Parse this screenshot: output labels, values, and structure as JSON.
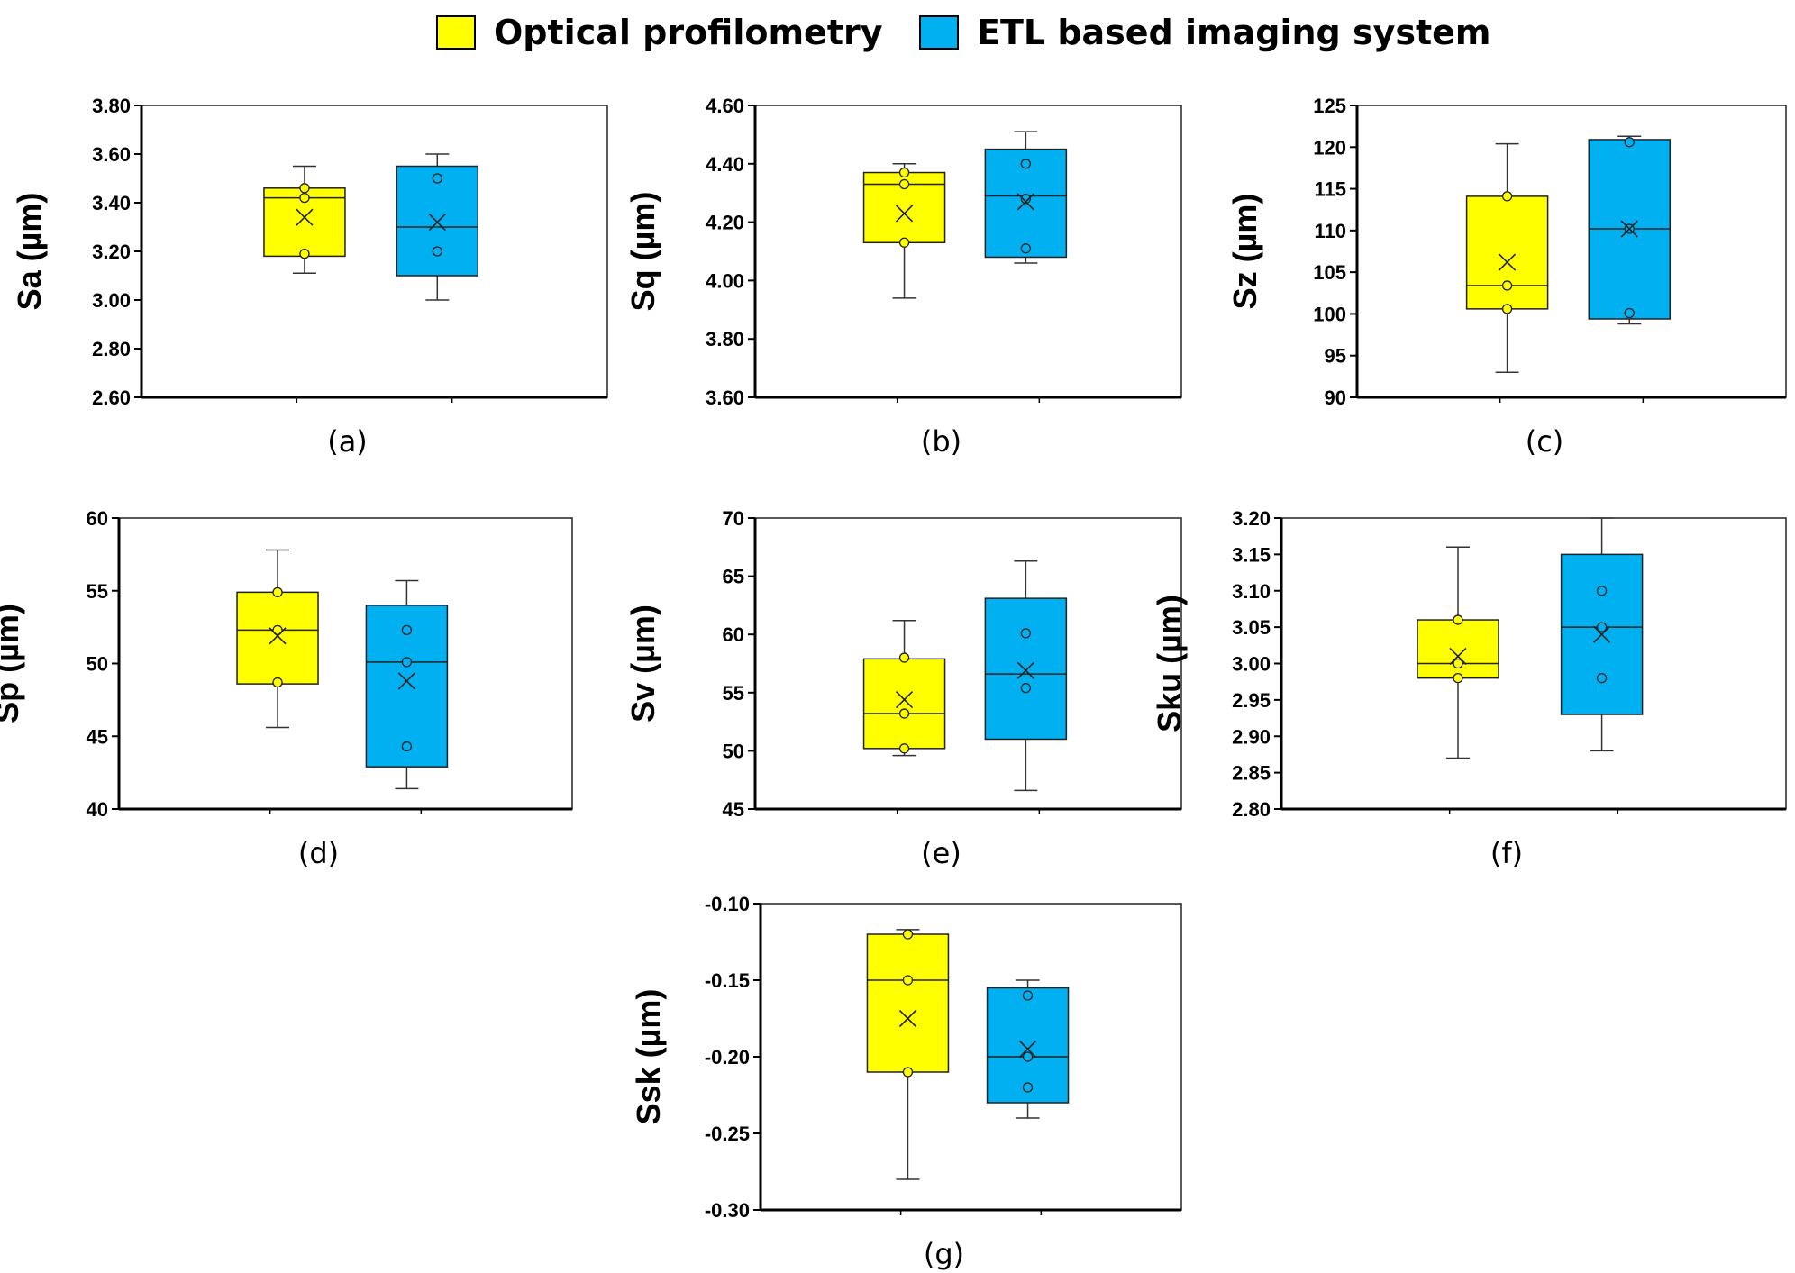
{
  "legend": {
    "items": [
      {
        "label": "Optical profilometry",
        "color": "#FFFF00"
      },
      {
        "label": "ETL based imaging system",
        "color": "#00B0F0"
      }
    ]
  },
  "chart_data": [
    {
      "type": "box",
      "panel": "(a)",
      "ylabel": "Sa (µm)",
      "ylim": [
        2.6,
        3.8
      ],
      "yticks": [
        2.6,
        2.8,
        3.0,
        3.2,
        3.4,
        3.6,
        3.8
      ],
      "decimals": 2,
      "series": [
        {
          "name": "Optical profilometry",
          "min": 3.11,
          "q1": 3.18,
          "median": 3.42,
          "q3": 3.46,
          "max": 3.55,
          "mean": 3.34,
          "points": [
            3.19,
            3.42,
            3.46
          ]
        },
        {
          "name": "ETL based imaging system",
          "min": 3.0,
          "q1": 3.1,
          "median": 3.3,
          "q3": 3.55,
          "max": 3.6,
          "mean": 3.32,
          "points": [
            3.2,
            3.5
          ]
        }
      ]
    },
    {
      "type": "box",
      "panel": "(b)",
      "ylabel": "Sq (µm)",
      "ylim": [
        3.6,
        4.6
      ],
      "yticks": [
        3.6,
        3.8,
        4.0,
        4.2,
        4.4,
        4.6
      ],
      "decimals": 2,
      "series": [
        {
          "name": "Optical profilometry",
          "min": 3.94,
          "q1": 4.13,
          "median": 4.33,
          "q3": 4.37,
          "max": 4.4,
          "mean": 4.23,
          "points": [
            4.13,
            4.33,
            4.37
          ]
        },
        {
          "name": "ETL based imaging system",
          "min": 4.06,
          "q1": 4.08,
          "median": 4.29,
          "q3": 4.45,
          "max": 4.51,
          "mean": 4.27,
          "points": [
            4.11,
            4.28,
            4.4
          ]
        }
      ]
    },
    {
      "type": "box",
      "panel": "(c)",
      "ylabel": "Sz (µm)",
      "ylim": [
        90,
        125
      ],
      "yticks": [
        90,
        95,
        100,
        105,
        110,
        115,
        120,
        125
      ],
      "decimals": 0,
      "series": [
        {
          "name": "Optical profilometry",
          "min": 93,
          "q1": 100.6,
          "median": 103.4,
          "q3": 114.1,
          "max": 120.4,
          "mean": 106.2,
          "points": [
            100.6,
            103.4,
            114.1
          ]
        },
        {
          "name": "ETL based imaging system",
          "min": 98.8,
          "q1": 99.4,
          "median": 110.2,
          "q3": 120.9,
          "max": 121.3,
          "mean": 110.2,
          "points": [
            100.1,
            110.2,
            120.6
          ]
        }
      ]
    },
    {
      "type": "box",
      "panel": "(d)",
      "ylabel": "Sp (µm)",
      "ylim": [
        40,
        60
      ],
      "yticks": [
        40,
        45,
        50,
        55,
        60
      ],
      "decimals": 0,
      "series": [
        {
          "name": "Optical profilometry",
          "min": 45.6,
          "q1": 48.6,
          "median": 52.3,
          "q3": 54.9,
          "max": 57.8,
          "mean": 51.9,
          "points": [
            48.7,
            52.3,
            54.9
          ]
        },
        {
          "name": "ETL based imaging system",
          "min": 41.4,
          "q1": 42.9,
          "median": 50.1,
          "q3": 54.0,
          "max": 55.7,
          "mean": 48.8,
          "points": [
            44.3,
            50.1,
            52.3
          ]
        }
      ]
    },
    {
      "type": "box",
      "panel": "(e)",
      "ylabel": "Sv (µm)",
      "ylim": [
        45,
        70
      ],
      "yticks": [
        45,
        50,
        55,
        60,
        65,
        70
      ],
      "decimals": 0,
      "series": [
        {
          "name": "Optical profilometry",
          "min": 49.6,
          "q1": 50.2,
          "median": 53.2,
          "q3": 57.9,
          "max": 61.2,
          "mean": 54.4,
          "points": [
            50.2,
            53.2,
            58.0
          ]
        },
        {
          "name": "ETL based imaging system",
          "min": 46.6,
          "q1": 51.0,
          "median": 56.6,
          "q3": 63.1,
          "max": 66.3,
          "mean": 56.9,
          "points": [
            55.4,
            60.1
          ]
        }
      ]
    },
    {
      "type": "box",
      "panel": "(f)",
      "ylabel": "Sku (µm)",
      "ylim": [
        2.8,
        3.2
      ],
      "yticks": [
        2.8,
        2.85,
        2.9,
        2.95,
        3.0,
        3.05,
        3.1,
        3.15,
        3.2
      ],
      "decimals": 2,
      "series": [
        {
          "name": "Optical profilometry",
          "min": 2.87,
          "q1": 2.98,
          "median": 3.0,
          "q3": 3.06,
          "max": 3.16,
          "mean": 3.01,
          "points": [
            2.98,
            3.0,
            3.06
          ]
        },
        {
          "name": "ETL based imaging system",
          "min": 2.88,
          "q1": 2.93,
          "median": 3.05,
          "q3": 3.15,
          "max": 3.2,
          "mean": 3.04,
          "points": [
            2.98,
            3.05,
            3.1
          ]
        }
      ]
    },
    {
      "type": "box",
      "panel": "(g)",
      "ylabel": "Ssk (µm)",
      "ylim": [
        -0.3,
        -0.1
      ],
      "yticks": [
        -0.3,
        -0.25,
        -0.2,
        -0.15,
        -0.1
      ],
      "decimals": 2,
      "series": [
        {
          "name": "Optical profilometry",
          "min": -0.28,
          "q1": -0.21,
          "median": -0.15,
          "q3": -0.12,
          "max": -0.117,
          "mean": -0.175,
          "points": [
            -0.21,
            -0.15,
            -0.12
          ]
        },
        {
          "name": "ETL based imaging system",
          "min": -0.24,
          "q1": -0.23,
          "median": -0.2,
          "q3": -0.155,
          "max": -0.15,
          "mean": -0.195,
          "points": [
            -0.22,
            -0.2,
            -0.16
          ]
        }
      ]
    }
  ]
}
